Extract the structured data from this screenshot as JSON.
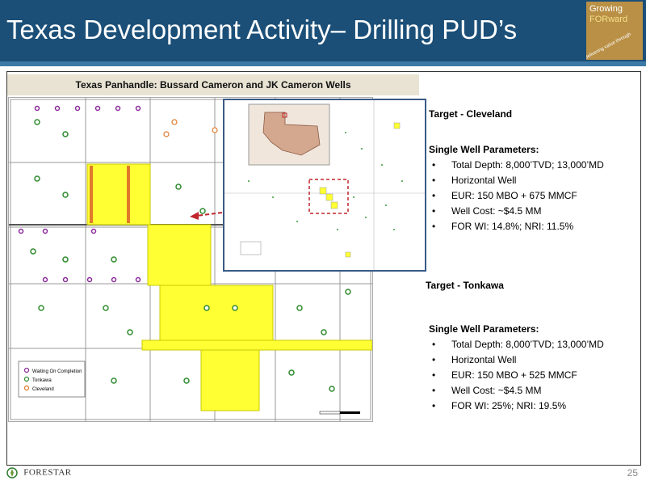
{
  "header": {
    "title": "Texas Development Activity– Drilling PUD’s",
    "logo_line1": "Growing",
    "logo_line2": "FORward",
    "logo_small": "delivering value through"
  },
  "map": {
    "caption": "Texas Panhandle: Bussard Cameron and JK Cameron Wells",
    "legend": [
      "Waiting On Completion",
      "Tonkawa",
      "Cleveland"
    ]
  },
  "targets": [
    {
      "title": "Target - Cleveland",
      "params_title": "Single Well Parameters:",
      "params": [
        "Total Depth: 8,000’TVD; 13,000’MD",
        "Horizontal Well",
        "EUR: 150 MBO + 675 MMCF",
        "Well Cost: ~$4.5 MM",
        "FOR WI: 14.8%; NRI: 11.5%"
      ]
    },
    {
      "title": "Target - Tonkawa",
      "params_title": "Single Well Parameters:",
      "params": [
        "Total Depth: 8,000’TVD; 13,000’MD",
        "Horizontal Well",
        "EUR: 150 MBO + 525 MMCF",
        "Well Cost: ~$4.5 MM",
        "FOR WI: 25%; NRI: 19.5%"
      ]
    }
  ],
  "footer": {
    "company": "FORESTAR",
    "page": "25"
  },
  "colors": {
    "header_bg": "#1b4f78",
    "lease_yellow": "#ffff33",
    "arrow_red": "#c0262c",
    "inset_border": "#3a5a86"
  }
}
